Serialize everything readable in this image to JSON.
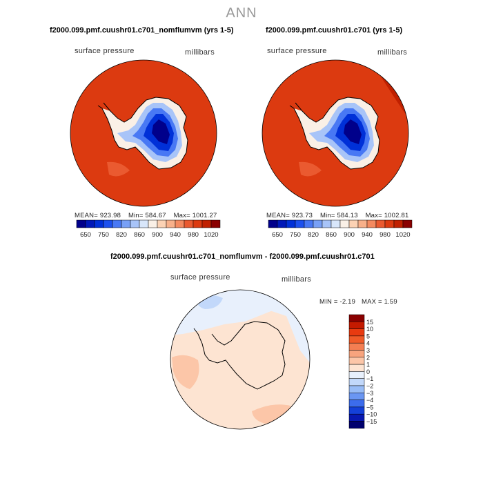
{
  "main_title": "ANN",
  "panels": [
    {
      "title": "f2000.099.pmf.cuushr01.c701_nomflumvm (yrs 1-5)",
      "left_label": "surface pressure",
      "right_label": "millibars",
      "mean_label": "MEAN=",
      "mean": "923.98",
      "min_label": "Min=",
      "min": "584.67",
      "max_label": "Max=",
      "max": "1001.27"
    },
    {
      "title": "f2000.099.pmf.cuushr01.c701 (yrs 1-5)",
      "left_label": "surface pressure",
      "right_label": "millibars",
      "mean_label": "MEAN=",
      "mean": "923.73",
      "min_label": "Min=",
      "min": "584.13",
      "max_label": "Max=",
      "max": "1002.81"
    }
  ],
  "diff_panel": {
    "title": "f2000.099.pmf.cuushr01.c701_nomflumvm - f2000.099.pmf.cuushr01.c701",
    "left_label": "surface pressure",
    "right_label": "millibars",
    "min_label": "MIN =",
    "min": "-2.19",
    "max_label": "MAX =",
    "max": "1.59"
  },
  "chart_data": [
    {
      "type": "heatmap",
      "projection": "south-polar-stereographic",
      "title": "f2000.099.pmf.cuushr01.c701_nomflumvm (yrs 1-5)",
      "variable": "surface pressure",
      "units": "millibars",
      "mean": 923.98,
      "min": 584.67,
      "max": 1001.27,
      "colorbar": {
        "orientation": "horizontal",
        "levels": [
          650,
          700,
          750,
          800,
          820,
          840,
          860,
          880,
          900,
          920,
          940,
          960,
          980,
          1000,
          1020
        ],
        "tick_labels": [
          "650",
          "750",
          "820",
          "860",
          "900",
          "940",
          "980",
          "1020"
        ],
        "colors": [
          "#00008b",
          "#0018b8",
          "#0030d8",
          "#1c50ee",
          "#4878f4",
          "#78a0f6",
          "#a8c4f8",
          "#d8e6fa",
          "#faf0e6",
          "#fcd2b4",
          "#f8b08a",
          "#f48a60",
          "#ea5a30",
          "#dc3a10",
          "#c02000",
          "#8a0000"
        ]
      }
    },
    {
      "type": "heatmap",
      "projection": "south-polar-stereographic",
      "title": "f2000.099.pmf.cuushr01.c701 (yrs 1-5)",
      "variable": "surface pressure",
      "units": "millibars",
      "mean": 923.73,
      "min": 584.13,
      "max": 1002.81,
      "colorbar": {
        "orientation": "horizontal",
        "levels": [
          650,
          700,
          750,
          800,
          820,
          840,
          860,
          880,
          900,
          920,
          940,
          960,
          980,
          1000,
          1020
        ],
        "tick_labels": [
          "650",
          "750",
          "820",
          "860",
          "900",
          "940",
          "980",
          "1020"
        ],
        "colors": [
          "#00008b",
          "#0018b8",
          "#0030d8",
          "#1c50ee",
          "#4878f4",
          "#78a0f6",
          "#a8c4f8",
          "#d8e6fa",
          "#faf0e6",
          "#fcd2b4",
          "#f8b08a",
          "#f48a60",
          "#ea5a30",
          "#dc3a10",
          "#c02000",
          "#8a0000"
        ]
      }
    },
    {
      "type": "heatmap",
      "projection": "south-polar-stereographic",
      "title": "f2000.099.pmf.cuushr01.c701_nomflumvm - f2000.099.pmf.cuushr01.c701",
      "variable": "surface pressure",
      "units": "millibars",
      "min": -2.19,
      "max": 1.59,
      "colorbar": {
        "orientation": "vertical",
        "levels": [
          15,
          10,
          5,
          4,
          3,
          2,
          1,
          0,
          -1,
          -2,
          -3,
          -4,
          -5,
          -10,
          -15
        ],
        "tick_labels": [
          "15",
          "10",
          "5",
          "4",
          "3",
          "2",
          "1",
          "0",
          "−1",
          "−2",
          "−3",
          "−4",
          "−5",
          "−10",
          "−15"
        ],
        "colors": [
          "#8a0000",
          "#c41a00",
          "#e83a10",
          "#f05a28",
          "#f47e52",
          "#f8a47e",
          "#fcc6a8",
          "#fde4d2",
          "#e8f0fc",
          "#c2d8fa",
          "#98bcf6",
          "#6a96f2",
          "#3c6cec",
          "#1440d8",
          "#0818b0",
          "#00006e"
        ]
      }
    }
  ]
}
